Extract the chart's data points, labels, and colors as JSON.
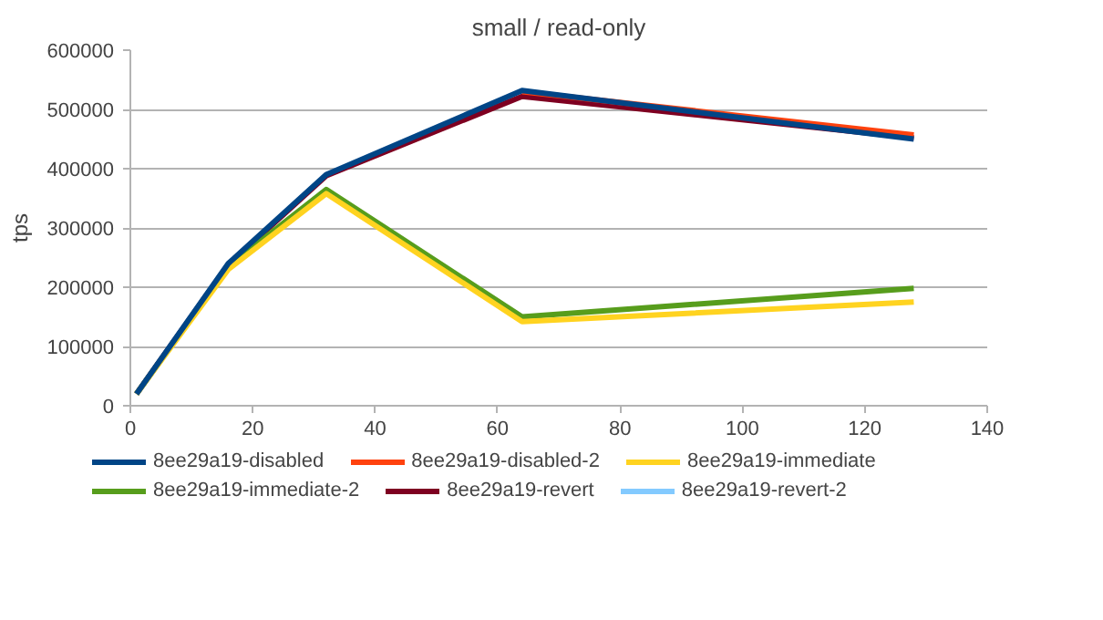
{
  "chart_data": {
    "type": "line",
    "title": "small / read-only",
    "ylabel": "tps",
    "x": [
      1,
      16,
      32,
      64,
      128
    ],
    "xlim": [
      0,
      140
    ],
    "xticks": [
      0,
      20,
      40,
      60,
      80,
      100,
      120,
      140
    ],
    "ylim": [
      0,
      600000
    ],
    "yticks": [
      0,
      100000,
      200000,
      300000,
      400000,
      500000,
      600000
    ],
    "grid": "y",
    "legend": "bottom",
    "marker": "none",
    "line_style": "solid",
    "series": [
      {
        "name": "8ee29a19-disabled",
        "color": "#004586",
        "values": [
          20000,
          240000,
          390000,
          532000,
          450000
        ]
      },
      {
        "name": "8ee29a19-disabled-2",
        "color": "#ff420e",
        "values": [
          null,
          null,
          null,
          530000,
          457000
        ]
      },
      {
        "name": "8ee29a19-immediate",
        "color": "#ffd320",
        "values": [
          20000,
          230000,
          358000,
          142000,
          175000
        ]
      },
      {
        "name": "8ee29a19-immediate-2",
        "color": "#579d1c",
        "values": [
          20000,
          235000,
          365000,
          150000,
          198000
        ]
      },
      {
        "name": "8ee29a19-revert",
        "color": "#7e0021",
        "values": [
          20000,
          238000,
          388000,
          522000,
          452000
        ]
      },
      {
        "name": "8ee29a19-revert-2",
        "color": "#83caff",
        "values": [
          null,
          null,
          null,
          null,
          null
        ]
      }
    ]
  }
}
